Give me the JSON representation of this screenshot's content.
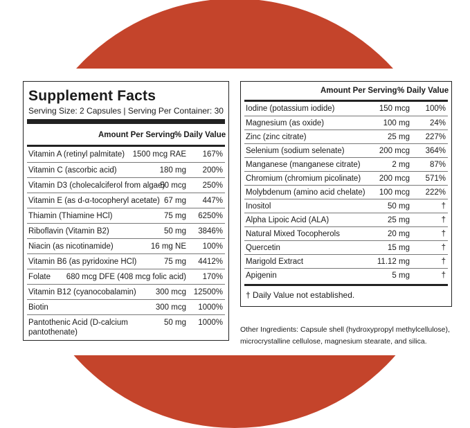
{
  "facts": {
    "title": "Supplement Facts",
    "serving": "Serving Size: 2 Capsules | Serving Per Container: 30",
    "header_amount": "Amount Per Serving",
    "header_dv": "% Daily Value",
    "left_rows": [
      {
        "name": "Vitamin A (retinyl palmitate)",
        "amount": "1500 mcg RAE",
        "dv": "167%"
      },
      {
        "name": "Vitamin C (ascorbic acid)",
        "amount": "180 mg",
        "dv": "200%"
      },
      {
        "name": "Vitamin D3 (cholecalciferol from algae)",
        "amount": "50 mcg",
        "dv": "250%"
      },
      {
        "name": "Vitamin E (as d-α-tocopheryl acetate)",
        "amount": "67 mg",
        "dv": "447%"
      },
      {
        "name": "Thiamin (Thiamine HCl)",
        "amount": "75 mg",
        "dv": "6250%"
      },
      {
        "name": "Riboflavin (Vitamin B2)",
        "amount": "50 mg",
        "dv": "3846%"
      },
      {
        "name": "Niacin (as nicotinamide)",
        "amount": "16 mg NE",
        "dv": "100%"
      },
      {
        "name": "Vitamin B6 (as pyridoxine HCl)",
        "amount": "75 mg",
        "dv": "4412%"
      },
      {
        "name": "Folate",
        "amount": "680 mcg DFE (408 mcg folic acid)",
        "dv": "170%"
      },
      {
        "name": "Vitamin B12 (cyanocobalamin)",
        "amount": "300 mcg",
        "dv": "12500%"
      },
      {
        "name": "Biotin",
        "amount": "300 mcg",
        "dv": "1000%"
      },
      {
        "name": "Pantothenic Acid (D-calcium",
        "name2": "pantothenate)",
        "amount": "50 mg",
        "dv": "1000%"
      }
    ],
    "right_rows": [
      {
        "name": "Iodine (potassium iodide)",
        "amount": "150 mcg",
        "dv": "100%"
      },
      {
        "name": "Magnesium (as oxide)",
        "amount": "100 mg",
        "dv": "24%"
      },
      {
        "name": "Zinc (zinc citrate)",
        "amount": "25 mg",
        "dv": "227%"
      },
      {
        "name": "Selenium (sodium selenate)",
        "amount": "200 mcg",
        "dv": "364%"
      },
      {
        "name": "Manganese (manganese citrate)",
        "amount": "2 mg",
        "dv": "87%"
      },
      {
        "name": "Chromium (chromium picolinate)",
        "amount": "200 mcg",
        "dv": "571%"
      },
      {
        "name": "Molybdenum (amino acid chelate)",
        "amount": "100 mcg",
        "dv": "222%"
      },
      {
        "name": "Inositol",
        "amount": "50 mg",
        "dv": "†"
      },
      {
        "name": "Alpha Lipoic Acid (ALA)",
        "amount": "25 mg",
        "dv": "†"
      },
      {
        "name": "Natural Mixed Tocopherols",
        "amount": "20 mg",
        "dv": "†"
      },
      {
        "name": "Quercetin",
        "amount": "15 mg",
        "dv": "†"
      },
      {
        "name": "Marigold Extract",
        "amount": "11.12 mg",
        "dv": "†"
      },
      {
        "name": "Apigenin",
        "amount": "5 mg",
        "dv": "†"
      }
    ],
    "dv_note": "† Daily Value not established.",
    "other_ingredients": "Other Ingredients: Capsule shell (hydroxypropyl methylcellulose), microcrystalline cellulose, magnesium stearate, and silica."
  },
  "colors": {
    "background_circle": "#c4442b"
  }
}
